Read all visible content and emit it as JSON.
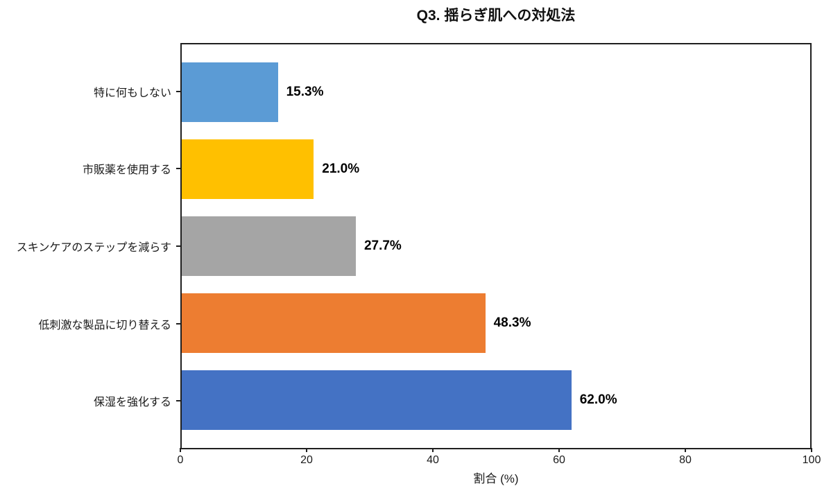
{
  "chart_data": {
    "type": "bar",
    "orientation": "horizontal",
    "title": "Q3. 揺らぎ肌への対処法",
    "categories": [
      "特に何もしない",
      "市販薬を使用する",
      "スキンケアのステップを減らす",
      "低刺激な製品に切り替える",
      "保湿を強化する"
    ],
    "values": [
      15.3,
      21.0,
      27.7,
      48.3,
      62.0
    ],
    "value_labels": [
      "15.3%",
      "21.0%",
      "27.7%",
      "48.3%",
      "62.0%"
    ],
    "bar_colors": [
      "#5B9BD5",
      "#FFC000",
      "#A5A5A5",
      "#ED7D31",
      "#4472C4"
    ],
    "xlabel": "割合 (%)",
    "ylabel": "",
    "xlim": [
      0,
      100
    ],
    "xticks": [
      0,
      20,
      40,
      60,
      80,
      100
    ],
    "legend": "none",
    "grid": false,
    "background": "#ffffff",
    "axis_color": "#1f1f1f"
  }
}
